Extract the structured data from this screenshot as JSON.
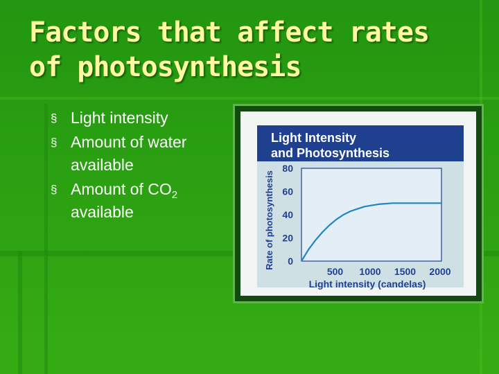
{
  "slide": {
    "title_line1": "Factors that affect rates",
    "title_line2": "of photosynthesis",
    "bullet_marker": "§",
    "bullets": [
      {
        "text": "Light intensity"
      },
      {
        "text": "Amount of water available"
      },
      {
        "text": "Amount of CO",
        "sub": "2",
        "after": " available"
      }
    ]
  },
  "colors": {
    "background": "#2a9a12",
    "title": "#fffaa0",
    "chart_header": "#1f3f8f",
    "chart_plot_bg": "#e3eef7",
    "curve": "#1e86c4"
  },
  "chart_data": {
    "type": "line",
    "title_line1": "Light Intensity",
    "title_line2": "and Photosynthesis",
    "xlabel": "Light intensity (candelas)",
    "ylabel": "Rate of photosynthesis",
    "xlim": [
      0,
      2000
    ],
    "ylim": [
      0,
      80
    ],
    "xticks": [
      500,
      1000,
      1500,
      2000
    ],
    "yticks": [
      0,
      20,
      40,
      60,
      80
    ],
    "grid": false,
    "series": [
      {
        "x": [
          0,
          100,
          200,
          300,
          400,
          500,
          600,
          700,
          800,
          900,
          1000,
          1100,
          1200,
          1300,
          1400,
          1500,
          1600,
          1700,
          1800,
          1900,
          2000
        ],
        "y": [
          0,
          10,
          18,
          25,
          31,
          36,
          40,
          43,
          45,
          47,
          48,
          49,
          49.5,
          50,
          50,
          50,
          50,
          50,
          50,
          50,
          50
        ]
      }
    ]
  }
}
